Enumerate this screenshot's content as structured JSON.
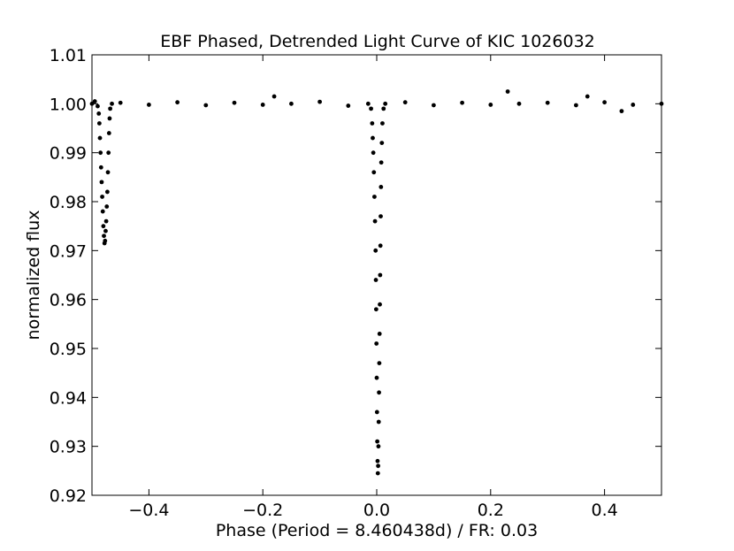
{
  "chart_data": {
    "type": "scatter",
    "title": "EBF Phased, Detrended Light Curve of KIC 1026032",
    "xlabel": "Phase (Period = 8.460438d) / FR: 0.03",
    "ylabel": "normalized flux",
    "xlim": [
      -0.5,
      0.5
    ],
    "ylim": [
      0.92,
      1.01
    ],
    "xticks": [
      -0.4,
      -0.2,
      0.0,
      0.2,
      0.4
    ],
    "xtick_labels": [
      "−0.4",
      "−0.2",
      "0.0",
      "0.2",
      "0.4"
    ],
    "yticks": [
      0.92,
      0.93,
      0.94,
      0.95,
      0.96,
      0.97,
      0.98,
      0.99,
      1.0,
      1.01
    ],
    "ytick_labels": [
      "0.92",
      "0.93",
      "0.94",
      "0.95",
      "0.96",
      "0.97",
      "0.98",
      "0.99",
      "1.00",
      "1.01"
    ],
    "grid": false,
    "marker_color": "#000000",
    "points": [
      [
        -0.5,
        1.0
      ],
      [
        -0.495,
        1.0005
      ],
      [
        -0.49,
        0.9995
      ],
      [
        -0.488,
        0.998
      ],
      [
        -0.487,
        0.996
      ],
      [
        -0.486,
        0.993
      ],
      [
        -0.485,
        0.99
      ],
      [
        -0.484,
        0.987
      ],
      [
        -0.483,
        0.984
      ],
      [
        -0.482,
        0.981
      ],
      [
        -0.481,
        0.978
      ],
      [
        -0.48,
        0.975
      ],
      [
        -0.479,
        0.973
      ],
      [
        -0.478,
        0.9715
      ],
      [
        -0.477,
        0.972
      ],
      [
        -0.476,
        0.974
      ],
      [
        -0.475,
        0.976
      ],
      [
        -0.474,
        0.979
      ],
      [
        -0.473,
        0.982
      ],
      [
        -0.472,
        0.986
      ],
      [
        -0.471,
        0.99
      ],
      [
        -0.47,
        0.994
      ],
      [
        -0.469,
        0.997
      ],
      [
        -0.468,
        0.999
      ],
      [
        -0.465,
        1.0
      ],
      [
        -0.45,
        1.0002
      ],
      [
        -0.4,
        0.9998
      ],
      [
        -0.35,
        1.0003
      ],
      [
        -0.3,
        0.9997
      ],
      [
        -0.25,
        1.0002
      ],
      [
        -0.2,
        0.9998
      ],
      [
        -0.18,
        1.0015
      ],
      [
        -0.15,
        1.0
      ],
      [
        -0.1,
        1.0004
      ],
      [
        -0.05,
        0.9996
      ],
      [
        -0.015,
        1.0
      ],
      [
        -0.01,
        0.999
      ],
      [
        -0.008,
        0.996
      ],
      [
        -0.007,
        0.993
      ],
      [
        -0.006,
        0.99
      ],
      [
        -0.005,
        0.986
      ],
      [
        -0.004,
        0.981
      ],
      [
        -0.003,
        0.976
      ],
      [
        -0.002,
        0.97
      ],
      [
        -0.0015,
        0.964
      ],
      [
        -0.001,
        0.958
      ],
      [
        -0.0005,
        0.951
      ],
      [
        0.0,
        0.944
      ],
      [
        0.0005,
        0.937
      ],
      [
        0.001,
        0.931
      ],
      [
        0.0015,
        0.927
      ],
      [
        0.002,
        0.9245
      ],
      [
        0.0025,
        0.926
      ],
      [
        0.003,
        0.93
      ],
      [
        0.0035,
        0.935
      ],
      [
        0.004,
        0.941
      ],
      [
        0.0045,
        0.947
      ],
      [
        0.005,
        0.953
      ],
      [
        0.0055,
        0.959
      ],
      [
        0.006,
        0.965
      ],
      [
        0.0065,
        0.971
      ],
      [
        0.007,
        0.977
      ],
      [
        0.0075,
        0.983
      ],
      [
        0.008,
        0.988
      ],
      [
        0.009,
        0.992
      ],
      [
        0.01,
        0.996
      ],
      [
        0.012,
        0.999
      ],
      [
        0.015,
        1.0
      ],
      [
        0.05,
        1.0003
      ],
      [
        0.1,
        0.9997
      ],
      [
        0.15,
        1.0002
      ],
      [
        0.2,
        0.9998
      ],
      [
        0.23,
        1.0025
      ],
      [
        0.25,
        1.0
      ],
      [
        0.3,
        1.0002
      ],
      [
        0.35,
        0.9997
      ],
      [
        0.37,
        1.0015
      ],
      [
        0.4,
        1.0003
      ],
      [
        0.43,
        0.9985
      ],
      [
        0.45,
        0.9998
      ],
      [
        0.5,
        1.0
      ]
    ]
  }
}
